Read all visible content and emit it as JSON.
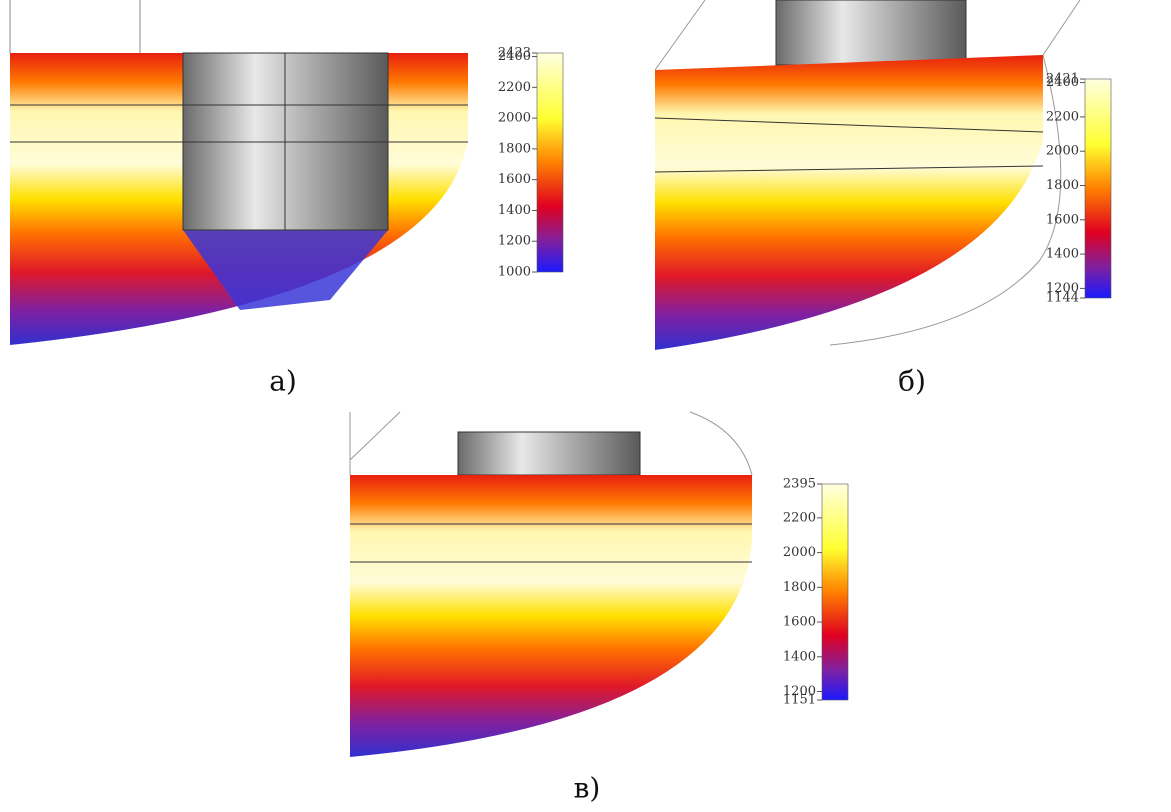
{
  "panels": [
    {
      "label": "а)",
      "colorbar": {
        "lim": [
          1000,
          2423
        ],
        "ticks": [
          2423,
          2400,
          2200,
          2000,
          1800,
          1600,
          1400,
          1200,
          1000
        ]
      }
    },
    {
      "label": "б)",
      "colorbar": {
        "lim": [
          1144,
          2421
        ],
        "ticks": [
          2421,
          2400,
          2200,
          2000,
          1800,
          1600,
          1400,
          1200,
          1144
        ]
      }
    },
    {
      "label": "в)",
      "colorbar": {
        "lim": [
          1151,
          2395
        ],
        "ticks": [
          2395,
          2200,
          2000,
          1800,
          1600,
          1400,
          1200,
          1151
        ]
      }
    }
  ]
}
